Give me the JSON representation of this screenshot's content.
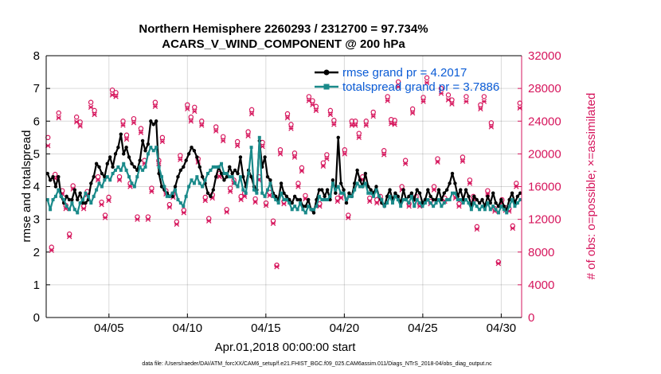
{
  "chart_data": {
    "type": "line",
    "title": "Northern Hemisphere 2260293 / 2312700 = 97.734%",
    "subtitle": "ACARS_V_WIND_COMPONENT @ 200 hPa",
    "xlabel": "Apr.01,2018 00:00:00 start",
    "ylabel_left": "rmse and totalspread",
    "ylabel_right": "# of obs: o=possible; ×=assimilated",
    "footer": "data file: /Users/raeder/DAI/ATM_forcXX/CAM6_setup/f.e21.FHIST_BGC.f09_025.CAM6assim.011/Diags_NTrS_2018-04/obs_diag_output.nc",
    "xlim": [
      1.0,
      31.3
    ],
    "ylim_left": [
      0,
      8
    ],
    "ylim_right": [
      0,
      32000
    ],
    "x_ticks": [
      5,
      10,
      15,
      20,
      25,
      30
    ],
    "x_tick_labels": [
      "04/05",
      "04/10",
      "04/15",
      "04/20",
      "04/25",
      "04/30"
    ],
    "y_left_ticks": [
      "0",
      "1",
      "2",
      "3",
      "4",
      "5",
      "6",
      "7",
      "8"
    ],
    "y_right_ticks": [
      "0",
      "4000",
      "8000",
      "12000",
      "16000",
      "20000",
      "24000",
      "28000",
      "32000"
    ],
    "grid": true,
    "legend_position": "top-right",
    "series": [
      {
        "name": "rmse grand pr = 4.2017",
        "color": "#000000",
        "axis": "left",
        "values": [
          4.4,
          4.2,
          4.3,
          4.0,
          4.3,
          3.7,
          3.5,
          3.7,
          3.6,
          3.6,
          3.9,
          3.6,
          3.8,
          3.5,
          3.5,
          3.6,
          4.1,
          4.3,
          4.7,
          4.6,
          4.4,
          4.3,
          4.7,
          4.9,
          4.6,
          5.0,
          5.2,
          5.6,
          5.0,
          5.2,
          4.9,
          4.7,
          4.6,
          4.5,
          4.8,
          5.4,
          5.1,
          5.3,
          6.0,
          5.9,
          6.0,
          4.4,
          4.0,
          3.9,
          3.8,
          3.7,
          3.7,
          4.0,
          4.3,
          4.5,
          4.6,
          4.8,
          5.0,
          5.2,
          5.1,
          4.9,
          4.6,
          4.3,
          4.1,
          3.8,
          3.7,
          3.9,
          4.3,
          4.6,
          4.4,
          4.2,
          4.3,
          4.6,
          4.4,
          4.5,
          4.4,
          4.9,
          4.3,
          4.0,
          4.5,
          4.3,
          4.0,
          3.9,
          5.4,
          4.6,
          4.9,
          4.3,
          4.2,
          3.8,
          3.7,
          3.6,
          4.1,
          3.8,
          3.7,
          3.6,
          3.5,
          3.7,
          3.6,
          3.6,
          3.4,
          3.4,
          3.6,
          3.3,
          3.2,
          3.6,
          3.9,
          3.9,
          3.7,
          3.9,
          3.6,
          4.2,
          3.8,
          5.5,
          4.1,
          3.9,
          3.5,
          3.8,
          3.7,
          4.1,
          4.5,
          4.2,
          4.0,
          4.4,
          4.0,
          3.9,
          3.8,
          4.0,
          3.7,
          3.5,
          3.4,
          3.7,
          3.9,
          3.6,
          3.8,
          3.7,
          3.5,
          3.9,
          3.6,
          3.7,
          3.8,
          3.6,
          3.9,
          3.8,
          3.5,
          3.6,
          3.9,
          3.7,
          3.6,
          3.6,
          3.9,
          3.6,
          3.8,
          3.9,
          4.1,
          4.4,
          4.1,
          3.7,
          3.9,
          3.6,
          3.9,
          3.7,
          3.4,
          3.7,
          3.6,
          3.5,
          3.6,
          3.4,
          3.7,
          3.5,
          3.8,
          3.5,
          3.4,
          3.6,
          3.4,
          3.3,
          3.6,
          3.8,
          3.5,
          3.7,
          3.8
        ]
      },
      {
        "name": "totalspread grand pr = 3.7886",
        "color": "#1a8a8a",
        "axis": "left",
        "values": [
          3.6,
          3.3,
          3.6,
          3.7,
          3.9,
          3.7,
          3.6,
          3.4,
          3.3,
          3.5,
          3.3,
          3.2,
          3.5,
          3.6,
          3.8,
          3.7,
          3.5,
          3.7,
          3.9,
          4.1,
          4.0,
          4.2,
          4.3,
          4.2,
          4.4,
          4.5,
          4.6,
          4.5,
          4.7,
          4.5,
          4.3,
          4.1,
          4.0,
          4.3,
          4.6,
          4.5,
          4.6,
          5.0,
          5.2,
          5.1,
          5.2,
          4.6,
          4.3,
          4.0,
          3.7,
          3.7,
          3.8,
          3.9,
          3.6,
          3.5,
          3.4,
          3.7,
          4.0,
          4.2,
          4.1,
          4.3,
          4.1,
          4.0,
          4.2,
          4.4,
          4.5,
          4.6,
          4.6,
          4.6,
          4.7,
          4.4,
          4.4,
          4.3,
          4.3,
          4.1,
          4.0,
          4.3,
          3.9,
          3.8,
          4.4,
          5.2,
          3.9,
          3.8,
          5.5,
          3.8,
          3.7,
          3.9,
          4.1,
          3.7,
          3.6,
          3.5,
          3.8,
          3.6,
          3.6,
          3.5,
          3.3,
          3.4,
          3.3,
          3.5,
          3.3,
          3.2,
          3.4,
          3.3,
          3.3,
          3.4,
          3.7,
          3.6,
          3.6,
          3.6,
          3.7,
          4.1,
          3.9,
          4.0,
          3.8,
          3.8,
          3.6,
          3.7,
          3.7,
          3.9,
          4.1,
          4.0,
          4.0,
          4.1,
          3.8,
          3.8,
          3.7,
          3.9,
          3.7,
          3.6,
          3.4,
          3.5,
          3.7,
          3.5,
          3.7,
          3.6,
          3.4,
          3.6,
          3.6,
          3.5,
          3.7,
          3.4,
          3.6,
          3.5,
          3.4,
          3.5,
          3.6,
          3.5,
          3.4,
          3.5,
          3.6,
          3.4,
          3.5,
          3.6,
          3.6,
          3.8,
          3.8,
          3.6,
          3.6,
          3.5,
          3.6,
          3.5,
          3.3,
          3.5,
          3.4,
          3.3,
          3.4,
          3.3,
          3.5,
          3.3,
          3.4,
          3.3,
          3.2,
          3.4,
          3.3,
          3.2,
          3.4,
          3.6,
          3.4,
          3.5,
          3.6
        ]
      },
      {
        "name": "obs possible",
        "color": "#d6155c",
        "axis": "right",
        "marker": "o",
        "values": [
          22000,
          8600,
          17500,
          25000,
          15500,
          13700,
          10200,
          16100,
          24500,
          23900,
          13600,
          15400,
          26300,
          25300,
          17200,
          14100,
          12500,
          14700,
          27800,
          27500,
          17200,
          24000,
          22300,
          16400,
          24300,
          12300,
          23100,
          19200,
          12300,
          15800,
          26300,
          19200,
          22000,
          15500,
          13800,
          15100,
          11700,
          19800,
          13100,
          26000,
          24500,
          25700,
          19400,
          24000,
          14700,
          12100,
          15000,
          23300,
          17600,
          22100,
          13200,
          15800,
          16800,
          21500,
          14800,
          15200,
          22700,
          25400,
          14500,
          17200,
          21400,
          14000,
          15300,
          11800,
          6400,
          20500,
          14200,
          24900,
          23600,
          20100,
          16400,
          18300,
          14900,
          27000,
          26500,
          25800,
          13900,
          18900,
          19900,
          25300,
          24100,
          14600,
          15000,
          20500,
          12500,
          24000,
          24000,
          22500,
          17200,
          24000,
          14600,
          25100,
          14400,
          14800,
          20400,
          27000,
          24200,
          24100,
          28800,
          16000,
          19200,
          13900,
          25500,
          14800,
          13900,
          26900,
          29300,
          14200,
          16000,
          19400,
          28000,
          14600,
          27200,
          26600,
          15000,
          13900,
          19600,
          27000,
          16800,
          14800,
          11100,
          26000,
          27000,
          15500,
          23800,
          13300,
          6800,
          14400,
          13400,
          13300,
          11200,
          16400,
          26200
        ]
      },
      {
        "name": "obs assimilated",
        "color": "#d6155c",
        "axis": "right",
        "marker": "x",
        "values": [
          21000,
          8200,
          17000,
          24400,
          15100,
          13300,
          9900,
          15700,
          23900,
          23400,
          13300,
          15000,
          25700,
          24800,
          16800,
          13800,
          12200,
          14300,
          27200,
          27000,
          16800,
          23500,
          21800,
          16000,
          23800,
          12000,
          22600,
          18800,
          12000,
          15400,
          25800,
          18800,
          21500,
          15100,
          13500,
          14700,
          11400,
          19300,
          12800,
          25500,
          24000,
          25200,
          19000,
          23500,
          14300,
          11800,
          14600,
          22800,
          17200,
          21600,
          12900,
          15400,
          16400,
          21000,
          14400,
          14800,
          22200,
          24900,
          14100,
          16800,
          20900,
          13700,
          14900,
          11500,
          6200,
          20000,
          13900,
          24400,
          23100,
          19600,
          16000,
          17900,
          14500,
          26500,
          26000,
          25300,
          13600,
          18500,
          19400,
          24800,
          23600,
          14200,
          14600,
          20000,
          12200,
          23500,
          23500,
          22000,
          16800,
          23500,
          14200,
          24600,
          14000,
          14400,
          19900,
          26500,
          23700,
          23600,
          28200,
          15600,
          18800,
          13600,
          25000,
          14400,
          13600,
          26400,
          28700,
          13900,
          15600,
          19000,
          27400,
          14200,
          26600,
          26100,
          14600,
          13600,
          19100,
          26400,
          16400,
          14400,
          10800,
          25500,
          26400,
          15100,
          23300,
          13000,
          6600,
          14000,
          13100,
          13000,
          10900,
          16000,
          25600
        ]
      }
    ]
  }
}
